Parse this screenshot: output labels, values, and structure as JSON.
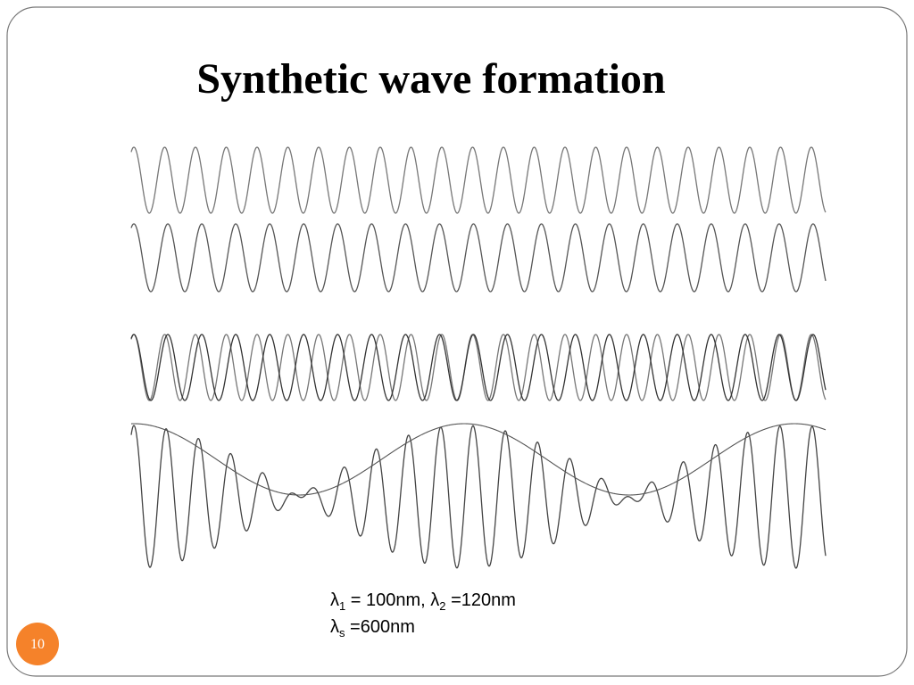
{
  "title": "Synthetic wave formation",
  "caption": {
    "line1": [
      "λ",
      "1",
      " = 100nm, ",
      "λ",
      "2",
      " =120nm"
    ],
    "line2": [
      "λ",
      "s",
      " =600nm"
    ]
  },
  "page_number": "10"
}
